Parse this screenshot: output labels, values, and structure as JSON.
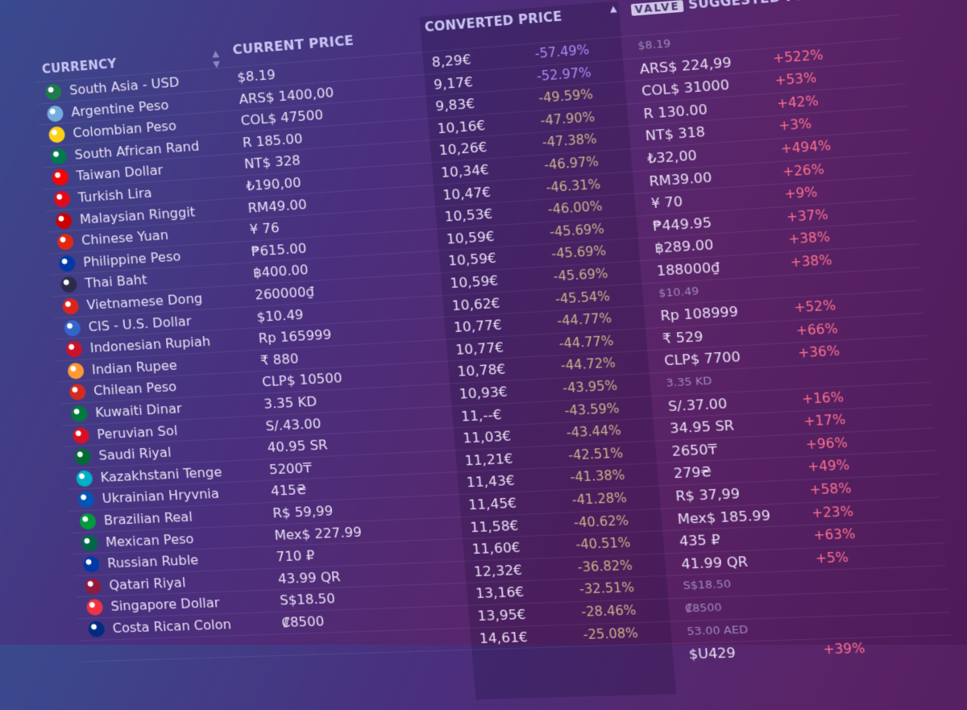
{
  "header": {
    "currency": "CURRENCY",
    "current_price": "CURRENT PRICE",
    "converted_price": "CONVERTED PRICE",
    "valve_badge": "VALVE",
    "suggested_price": "SUGGESTED PRICE"
  },
  "rows": [
    {
      "currency": "South Asia - USD",
      "current": "$8.19",
      "converted": "8,29€",
      "converted_change": "-57.49%",
      "suggested": "$8.19"
    },
    {
      "currency": "Argentine Peso",
      "current": "ARS$ 1400,00",
      "converted": "9,17€",
      "converted_change": "-52.97%",
      "suggested": "ARS$ 224,99",
      "suggested_change": "+522%"
    },
    {
      "currency": "Colombian Peso",
      "current": "COL$ 47500",
      "converted": "9,83€",
      "converted_change": "-49.59%",
      "suggested": "COL$ 31000",
      "suggested_change": "+53%"
    },
    {
      "currency": "South African Rand",
      "current": "R 185.00",
      "converted": "10,16€",
      "converted_change": "-47.90%",
      "suggested": "R 130.00",
      "suggested_change": "+42%"
    },
    {
      "currency": "Taiwan Dollar",
      "current": "NT$ 328",
      "converted": "10,26€",
      "converted_change": "-47.38%",
      "suggested": "NT$ 318",
      "suggested_change": "+3%"
    },
    {
      "currency": "Turkish Lira",
      "current": "₺190,00",
      "converted": "10,34€",
      "converted_change": "-46.97%",
      "suggested": "₺32,00",
      "suggested_change": "+494%"
    },
    {
      "currency": "Malaysian Ringgit",
      "current": "RM49.00",
      "converted": "10,47€",
      "converted_change": "-46.31%",
      "suggested": "RM39.00",
      "suggested_change": "+26%"
    },
    {
      "currency": "Chinese Yuan",
      "current": "¥ 76",
      "converted": "10,53€",
      "converted_change": "-46.00%",
      "suggested": "¥ 70",
      "suggested_change": "+9%"
    },
    {
      "currency": "Philippine Peso",
      "current": "₱615.00",
      "converted": "10,59€",
      "converted_change": "-45.69%",
      "suggested": "₱449.95",
      "suggested_change": "+37%"
    },
    {
      "currency": "Thai Baht",
      "current": "฿400.00",
      "converted": "10,59€",
      "converted_change": "-45.69%",
      "suggested": "฿289.00",
      "suggested_change": "+38%"
    },
    {
      "currency": "Vietnamese Dong",
      "current": "260000₫",
      "converted": "10,59€",
      "converted_change": "-45.69%",
      "suggested": "188000₫",
      "suggested_change": "+38%"
    },
    {
      "currency": "CIS - U.S. Dollar",
      "current": "$10.49",
      "converted": "10,62€",
      "converted_change": "-45.54%",
      "suggested": "$10.49"
    },
    {
      "currency": "Indonesian Rupiah",
      "current": "Rp 165999",
      "converted": "10,77€",
      "converted_change": "-44.77%",
      "suggested": "Rp 108999",
      "suggested_change": "+52%"
    },
    {
      "currency": "Indian Rupee",
      "current": "₹ 880",
      "converted": "10,77€",
      "converted_change": "-44.77%",
      "suggested": "₹ 529",
      "suggested_change": "+66%"
    },
    {
      "currency": "Chilean Peso",
      "current": "CLP$ 10500",
      "converted": "10,78€",
      "converted_change": "-44.72%",
      "suggested": "CLP$ 7700",
      "suggested_change": "+36%"
    },
    {
      "currency": "Kuwaiti Dinar",
      "current": "3.35 KD",
      "converted": "10,93€",
      "converted_change": "-43.95%",
      "suggested": "3.35 KD"
    },
    {
      "currency": "Peruvian Sol",
      "current": "S/.43.00",
      "converted": "11,--€",
      "converted_change": "-43.59%",
      "suggested": "S/.37.00",
      "suggested_change": "+16%"
    },
    {
      "currency": "Saudi Riyal",
      "current": "40.95 SR",
      "converted": "11,03€",
      "converted_change": "-43.44%",
      "suggested": "34.95 SR",
      "suggested_change": "+17%"
    },
    {
      "currency": "Kazakhstani Tenge",
      "current": "5200₸",
      "converted": "11,21€",
      "converted_change": "-42.51%",
      "suggested": "2650₸",
      "suggested_change": "+96%"
    },
    {
      "currency": "Ukrainian Hryvnia",
      "current": "415₴",
      "converted": "11,43€",
      "converted_change": "-41.38%",
      "suggested": "279₴",
      "suggested_change": "+49%"
    },
    {
      "currency": "Brazilian Real",
      "current": "R$ 59,99",
      "converted": "11,45€",
      "converted_change": "-41.28%",
      "suggested": "R$ 37,99",
      "suggested_change": "+58%"
    },
    {
      "currency": "Mexican Peso",
      "current": "Mex$ 227.99",
      "converted": "11,58€",
      "converted_change": "-40.62%",
      "suggested": "Mex$ 185.99",
      "suggested_change": "+23%"
    },
    {
      "currency": "Russian Ruble",
      "current": "710 ₽",
      "converted": "11,60€",
      "converted_change": "-40.51%",
      "suggested": "435 ₽",
      "suggested_change": "+63%"
    },
    {
      "currency": "Qatari Riyal",
      "current": "43.99 QR",
      "converted": "12,32€",
      "converted_change": "-36.82%",
      "suggested": "41.99 QR",
      "suggested_change": "+5%"
    },
    {
      "currency": "Singapore Dollar",
      "current": "S$18.50",
      "converted": "13,16€",
      "converted_change": "-32.51%",
      "suggested": "S$18.50"
    },
    {
      "currency": "Costa Rican Colon",
      "current": "₡8500",
      "converted": "13,95€",
      "converted_change": "-28.46%",
      "suggested": "₡8500"
    },
    {
      "converted": "14,61€",
      "converted_change": "-25.08%",
      "suggested": "53.00 AED"
    },
    {
      "suggested": "$U429",
      "suggested_change": "+39%"
    }
  ]
}
